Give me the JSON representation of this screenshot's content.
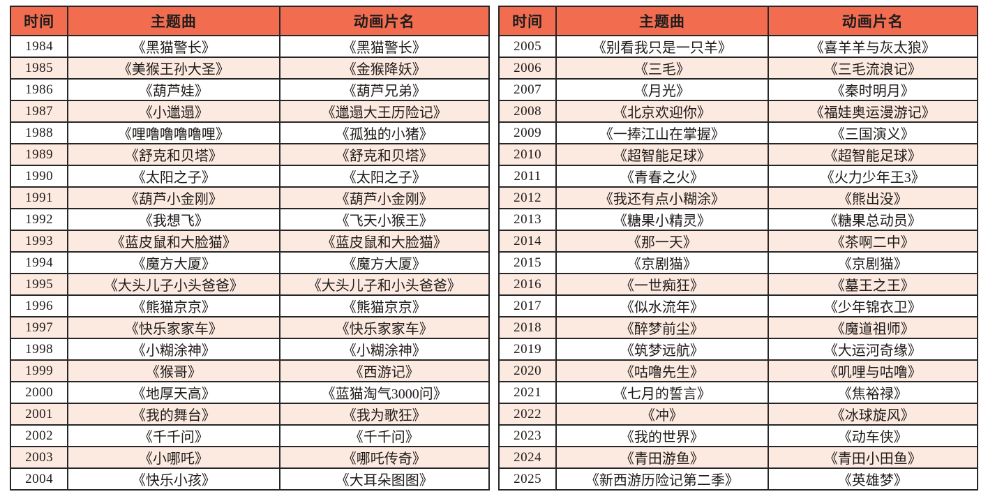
{
  "header": {
    "columns": [
      "时间",
      "主题曲",
      "动画片名"
    ]
  },
  "colors": {
    "header_bg": "#F26C50",
    "alt_row_bg": "#FCEAE0",
    "border": "#262626"
  },
  "left_table": {
    "rows": [
      [
        "1984",
        "《黑猫警长》",
        "《黑猫警长》"
      ],
      [
        "1985",
        "《美猴王孙大圣》",
        "《金猴降妖》"
      ],
      [
        "1986",
        "《葫芦娃》",
        "《葫芦兄弟》"
      ],
      [
        "1987",
        "《小邋遢》",
        "《邋遢大王历险记》"
      ],
      [
        "1988",
        "《哩噜噜噜噜哩》",
        "《孤独的小猪》"
      ],
      [
        "1989",
        "《舒克和贝塔》",
        "《舒克和贝塔》"
      ],
      [
        "1990",
        "《太阳之子》",
        "《太阳之子》"
      ],
      [
        "1991",
        "《葫芦小金刚》",
        "《葫芦小金刚》"
      ],
      [
        "1992",
        "《我想飞》",
        "《飞天小猴王》"
      ],
      [
        "1993",
        "《蓝皮鼠和大脸猫》",
        "《蓝皮鼠和大脸猫》"
      ],
      [
        "1994",
        "《魔方大厦》",
        "《魔方大厦》"
      ],
      [
        "1995",
        "《大头儿子小头爸爸》",
        "《大头儿子和小头爸爸》"
      ],
      [
        "1996",
        "《熊猫京京》",
        "《熊猫京京》"
      ],
      [
        "1997",
        "《快乐家家车》",
        "《快乐家家车》"
      ],
      [
        "1998",
        "《小糊涂神》",
        "《小糊涂神》"
      ],
      [
        "1999",
        "《猴哥》",
        "《西游记》"
      ],
      [
        "2000",
        "《地厚天高》",
        "《蓝猫淘气3000问》"
      ],
      [
        "2001",
        "《我的舞台》",
        "《我为歌狂》"
      ],
      [
        "2002",
        "《千千问》",
        "《千千问》"
      ],
      [
        "2003",
        "《小哪吒》",
        "《哪吒传奇》"
      ],
      [
        "2004",
        "《快乐小孩》",
        "《大耳朵图图》"
      ]
    ]
  },
  "right_table": {
    "rows": [
      [
        "2005",
        "《别看我只是一只羊》",
        "《喜羊羊与灰太狼》"
      ],
      [
        "2006",
        "《三毛》",
        "《三毛流浪记》"
      ],
      [
        "2007",
        "《月光》",
        "《秦时明月》"
      ],
      [
        "2008",
        "《北京欢迎你》",
        "《福娃奥运漫游记》"
      ],
      [
        "2009",
        "《一捧江山在掌握》",
        "《三国演义》"
      ],
      [
        "2010",
        "《超智能足球》",
        "《超智能足球》"
      ],
      [
        "2011",
        "《青春之火》",
        "《火力少年王3》"
      ],
      [
        "2012",
        "《我还有点小糊涂》",
        "《熊出没》"
      ],
      [
        "2013",
        "《糖果小精灵》",
        "《糖果总动员》"
      ],
      [
        "2014",
        "《那一天》",
        "《茶啊二中》"
      ],
      [
        "2015",
        "《京剧猫》",
        "《京剧猫》"
      ],
      [
        "2016",
        "《一世痴狂》",
        "《墓王之王》"
      ],
      [
        "2017",
        "《似水流年》",
        "《少年锦衣卫》"
      ],
      [
        "2018",
        "《醉梦前尘》",
        "《魔道祖师》"
      ],
      [
        "2019",
        "《筑梦远航》",
        "《大运河奇缘》"
      ],
      [
        "2020",
        "《咕噜先生》",
        "《叽哩与咕噜》"
      ],
      [
        "2021",
        "《七月的誓言》",
        "《焦裕禄》"
      ],
      [
        "2022",
        "《冲》",
        "《冰球旋风》"
      ],
      [
        "2023",
        "《我的世界》",
        "《动车侠》"
      ],
      [
        "2024",
        "《青田游鱼》",
        "《青田小田鱼》"
      ],
      [
        "2025",
        "《新西游历险记第二季》",
        "《英雄梦》"
      ]
    ]
  }
}
